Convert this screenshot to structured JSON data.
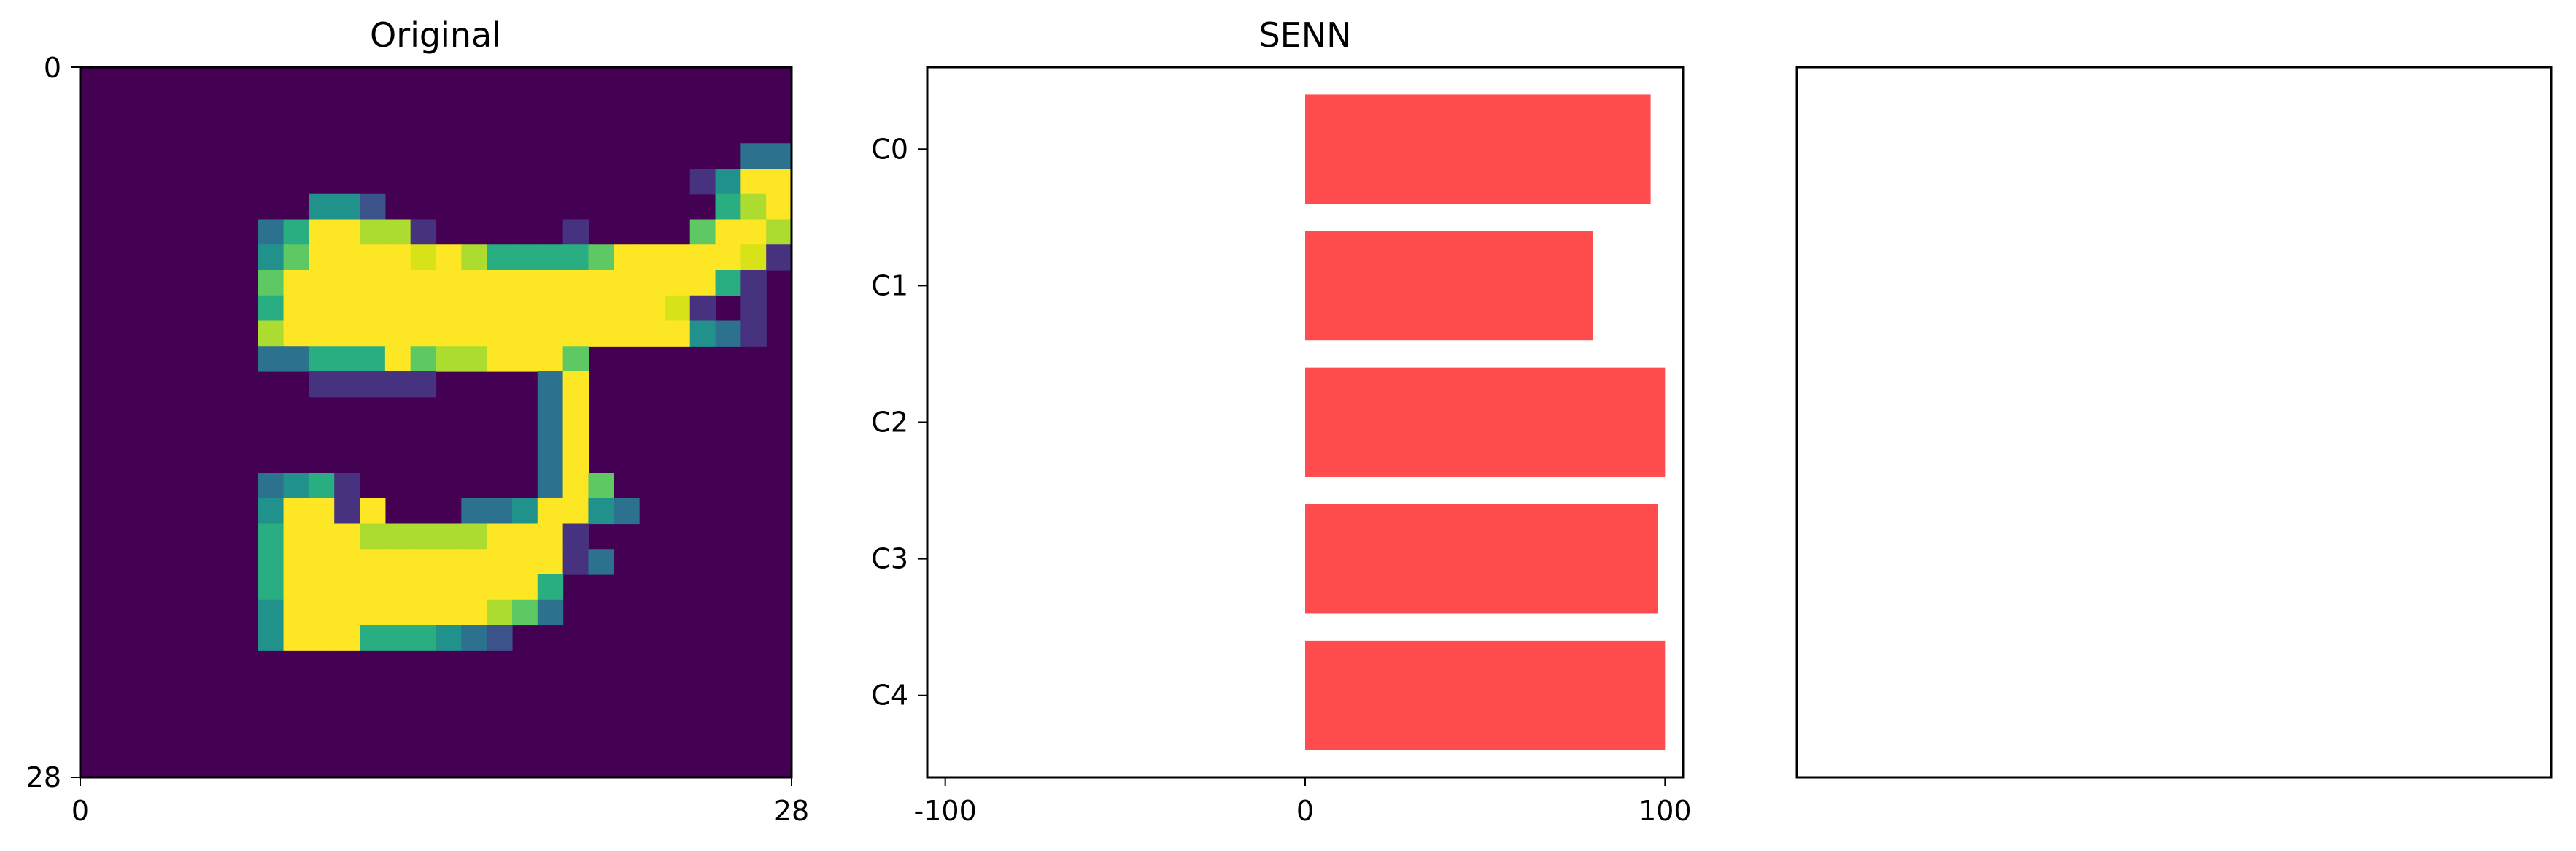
{
  "figure": {
    "panels": [
      {
        "title": "Original"
      },
      {
        "title": "SENN"
      },
      {
        "title": ""
      }
    ]
  },
  "chart_data": [
    {
      "type": "heatmap",
      "title": "Original",
      "colormap": "viridis",
      "xlim": [
        0,
        28
      ],
      "ylim": [
        28,
        0
      ],
      "xticks": [
        "0",
        "28"
      ],
      "yticks": [
        "0",
        "28"
      ],
      "grid": false
    },
    {
      "type": "bar",
      "orientation": "horizontal",
      "title": "SENN",
      "categories": [
        "C0",
        "C1",
        "C2",
        "C3",
        "C4"
      ],
      "values": [
        96,
        80,
        100,
        98,
        100
      ],
      "xlim": [
        -105,
        105
      ],
      "xticks": [
        "-100",
        "0",
        "100"
      ],
      "bar_color": "#ff4d4d",
      "grid": false
    },
    {
      "type": "bar",
      "title": "",
      "categories": [],
      "values": [],
      "grid": false
    }
  ]
}
